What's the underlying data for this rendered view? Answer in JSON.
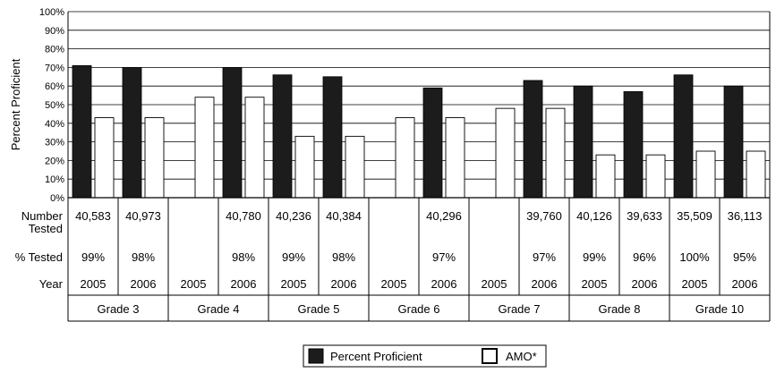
{
  "chart_data": {
    "type": "bar",
    "ylabel": "Percent Proficient",
    "ylim": [
      0,
      100
    ],
    "ytick_labels": [
      "0%",
      "10%",
      "20%",
      "30%",
      "40%",
      "50%",
      "60%",
      "70%",
      "80%",
      "90%",
      "100%"
    ],
    "grid": true,
    "legend_position": "bottom-center",
    "colors": {
      "Percent Proficient": "#1c1c1c",
      "AMO*": "#ffffff"
    },
    "series": [
      {
        "name": "Percent Proficient",
        "values": [
          71,
          70,
          null,
          70,
          66,
          65,
          null,
          59,
          null,
          63,
          60,
          57,
          66,
          60
        ]
      },
      {
        "name": "AMO*",
        "values": [
          43,
          43,
          54,
          54,
          33,
          33,
          43,
          43,
          48,
          48,
          23,
          23,
          25,
          25
        ]
      }
    ],
    "groups": [
      {
        "label": "Grade 3",
        "years": [
          "2005",
          "2006"
        ]
      },
      {
        "label": "Grade 4",
        "years": [
          "2005",
          "2006"
        ]
      },
      {
        "label": "Grade 5",
        "years": [
          "2005",
          "2006"
        ]
      },
      {
        "label": "Grade 6",
        "years": [
          "2005",
          "2006"
        ]
      },
      {
        "label": "Grade 7",
        "years": [
          "2005",
          "2006"
        ]
      },
      {
        "label": "Grade 8",
        "years": [
          "2005",
          "2006"
        ]
      },
      {
        "label": "Grade 10",
        "years": [
          "2005",
          "2006"
        ]
      }
    ],
    "table": {
      "row_labels": {
        "number_tested": [
          "Number",
          "Tested"
        ],
        "pct_tested": "% Tested",
        "year": "Year"
      },
      "number_tested": [
        "40,583",
        "40,973",
        "",
        "40,780",
        "40,236",
        "40,384",
        "",
        "40,296",
        "",
        "39,760",
        "40,126",
        "39,633",
        "35,509",
        "36,113"
      ],
      "pct_tested": [
        "99%",
        "98%",
        "",
        "98%",
        "99%",
        "98%",
        "",
        "97%",
        "",
        "97%",
        "99%",
        "96%",
        "100%",
        "95%"
      ]
    }
  }
}
